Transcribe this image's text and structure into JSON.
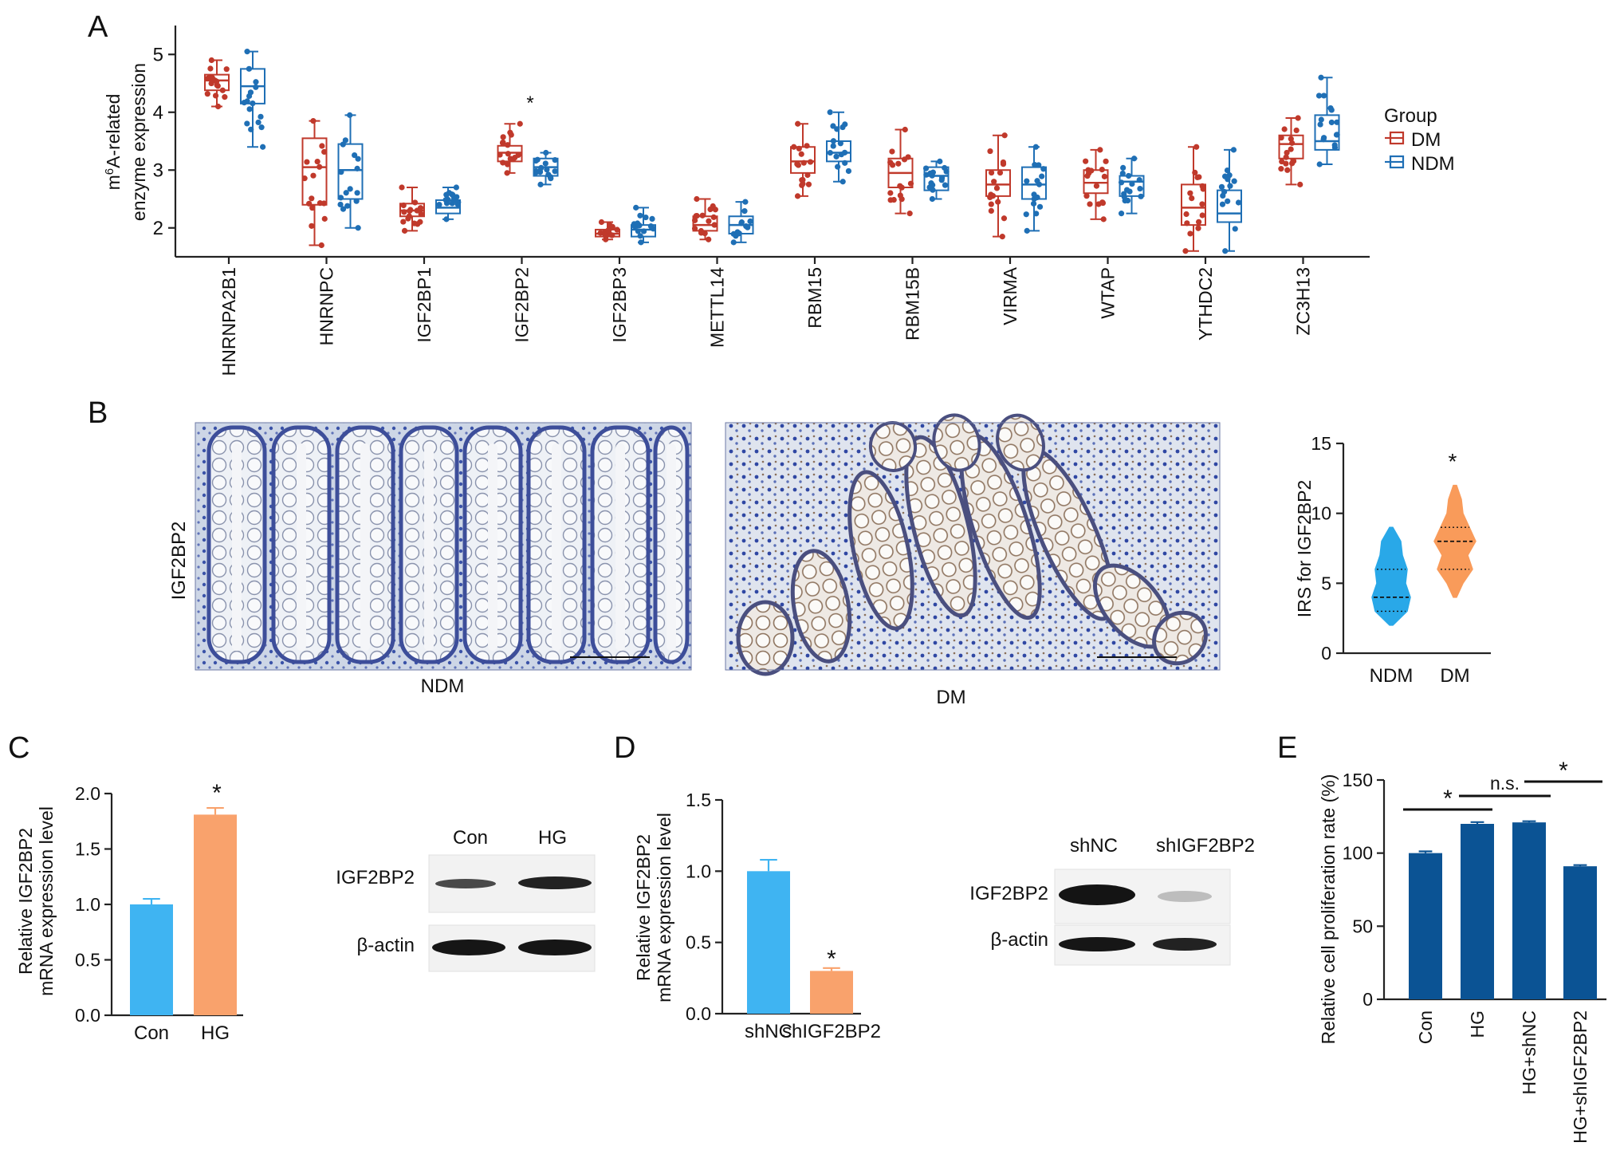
{
  "panels": {
    "A": "A",
    "B": "B",
    "C": "C",
    "D": "D",
    "E": "E"
  },
  "colors": {
    "dm": "#c0392b",
    "ndm": "#1f6fb5",
    "blue_bar": "#3fb4f2",
    "orange_bar": "#f9a26c",
    "navy_bar": "#0b5394",
    "violin_blue": "#29a8e8",
    "violin_orange": "#f99b5a"
  },
  "chart_data": [
    {
      "id": "A",
      "type": "box",
      "ylabel_line1": "m6A-related",
      "ylabel_line2": "enzyme expression",
      "ylim": [
        1.5,
        5.5
      ],
      "yticks": [
        2,
        3,
        4,
        5
      ],
      "categories": [
        "HNRNPA2B1",
        "HNRNPC",
        "IGF2BP1",
        "IGF2BP2",
        "IGF2BP3",
        "METTL14",
        "RBM15",
        "RBM15B",
        "VIRMA",
        "WTAP",
        "YTHDC2",
        "ZC3H13"
      ],
      "annotation": "*",
      "annotation_category": "IGF2BP2",
      "legend_title": "Group",
      "legend_position": "right",
      "series": [
        {
          "name": "DM",
          "boxes": [
            [
              4.1,
              4.38,
              4.55,
              4.65,
              4.9
            ],
            [
              1.7,
              2.4,
              3.05,
              3.55,
              3.85
            ],
            [
              1.95,
              2.2,
              2.3,
              2.42,
              2.7
            ],
            [
              2.95,
              3.15,
              3.3,
              3.42,
              3.8
            ],
            [
              1.8,
              1.85,
              1.9,
              1.97,
              2.1
            ],
            [
              1.8,
              1.95,
              2.05,
              2.2,
              2.5
            ],
            [
              2.55,
              2.95,
              3.15,
              3.4,
              3.8
            ],
            [
              2.25,
              2.7,
              2.95,
              3.2,
              3.7
            ],
            [
              1.85,
              2.55,
              2.75,
              3.0,
              3.6
            ],
            [
              2.15,
              2.6,
              2.78,
              3.0,
              3.35
            ],
            [
              1.6,
              2.05,
              2.35,
              2.75,
              3.4
            ],
            [
              2.75,
              3.2,
              3.45,
              3.6,
              3.9
            ]
          ]
        },
        {
          "name": "NDM",
          "boxes": [
            [
              3.4,
              4.15,
              4.45,
              4.75,
              5.05
            ],
            [
              2.0,
              2.5,
              3.0,
              3.45,
              3.95
            ],
            [
              2.15,
              2.25,
              2.35,
              2.48,
              2.7
            ],
            [
              2.75,
              2.9,
              3.05,
              3.2,
              3.3
            ],
            [
              1.75,
              1.85,
              1.97,
              2.05,
              2.35
            ],
            [
              1.75,
              1.9,
              2.05,
              2.2,
              2.45
            ],
            [
              2.8,
              3.15,
              3.3,
              3.5,
              4.0
            ],
            [
              2.5,
              2.65,
              2.9,
              3.05,
              3.15
            ],
            [
              1.95,
              2.5,
              2.75,
              3.05,
              3.4
            ],
            [
              2.25,
              2.55,
              2.8,
              2.9,
              3.2
            ],
            [
              1.6,
              2.1,
              2.25,
              2.65,
              3.35
            ],
            [
              3.1,
              3.35,
              3.5,
              3.95,
              4.6
            ]
          ]
        }
      ]
    },
    {
      "id": "B",
      "type": "violin",
      "ylabel": "IRS for IGF2BP2",
      "ylim": [
        0,
        15
      ],
      "yticks": [
        0,
        5,
        10,
        15
      ],
      "categories": [
        "NDM",
        "DM"
      ],
      "medians": [
        4,
        8
      ],
      "quartiles": [
        [
          3,
          6
        ],
        [
          6,
          9
        ]
      ],
      "ranges": [
        [
          2,
          9
        ],
        [
          4,
          12
        ]
      ],
      "annotation": "*"
    },
    {
      "id": "C",
      "type": "bar",
      "ylabel_line1": "Relative IGF2BP2",
      "ylabel_line2": "mRNA expression level",
      "ylim": [
        0,
        2.0
      ],
      "yticks": [
        "0.0",
        "0.5",
        "1.0",
        "1.5",
        "2.0"
      ],
      "categories": [
        "Con",
        "HG"
      ],
      "values": [
        1.0,
        1.81
      ],
      "errors": [
        0.05,
        0.06
      ],
      "annotation": "*"
    },
    {
      "id": "D",
      "type": "bar",
      "ylabel_line1": "Relative IGF2BP2",
      "ylabel_line2": "mRNA expression level",
      "ylim": [
        0,
        1.5
      ],
      "yticks": [
        "0.0",
        "0.5",
        "1.0",
        "1.5"
      ],
      "categories": [
        "shNC",
        "shIGF2BP2"
      ],
      "values": [
        1.0,
        0.3
      ],
      "errors": [
        0.08,
        0.02
      ],
      "annotation": "*"
    },
    {
      "id": "E",
      "type": "bar",
      "ylabel": "Relative cell proliferation rate (%)",
      "ylim": [
        0,
        150
      ],
      "yticks": [
        0,
        50,
        100,
        150
      ],
      "categories": [
        "Con",
        "HG",
        "HG+shNC",
        "HG+shIGF2BP2"
      ],
      "values": [
        100,
        120,
        121,
        91
      ],
      "errors": [
        1.2,
        1.2,
        0.8,
        0.8
      ],
      "comparisons": [
        "*",
        "n.s.",
        "*"
      ]
    }
  ],
  "panel_b_images": {
    "row_label": "IGF2BP2",
    "left_caption": "NDM",
    "right_caption": "DM"
  },
  "blot_c": {
    "lanes": [
      "Con",
      "HG"
    ],
    "rows": [
      "IGF2BP2",
      "β-actin"
    ]
  },
  "blot_d": {
    "lanes": [
      "shNC",
      "shIGF2BP2"
    ],
    "rows": [
      "IGF2BP2",
      "β-actin"
    ]
  }
}
